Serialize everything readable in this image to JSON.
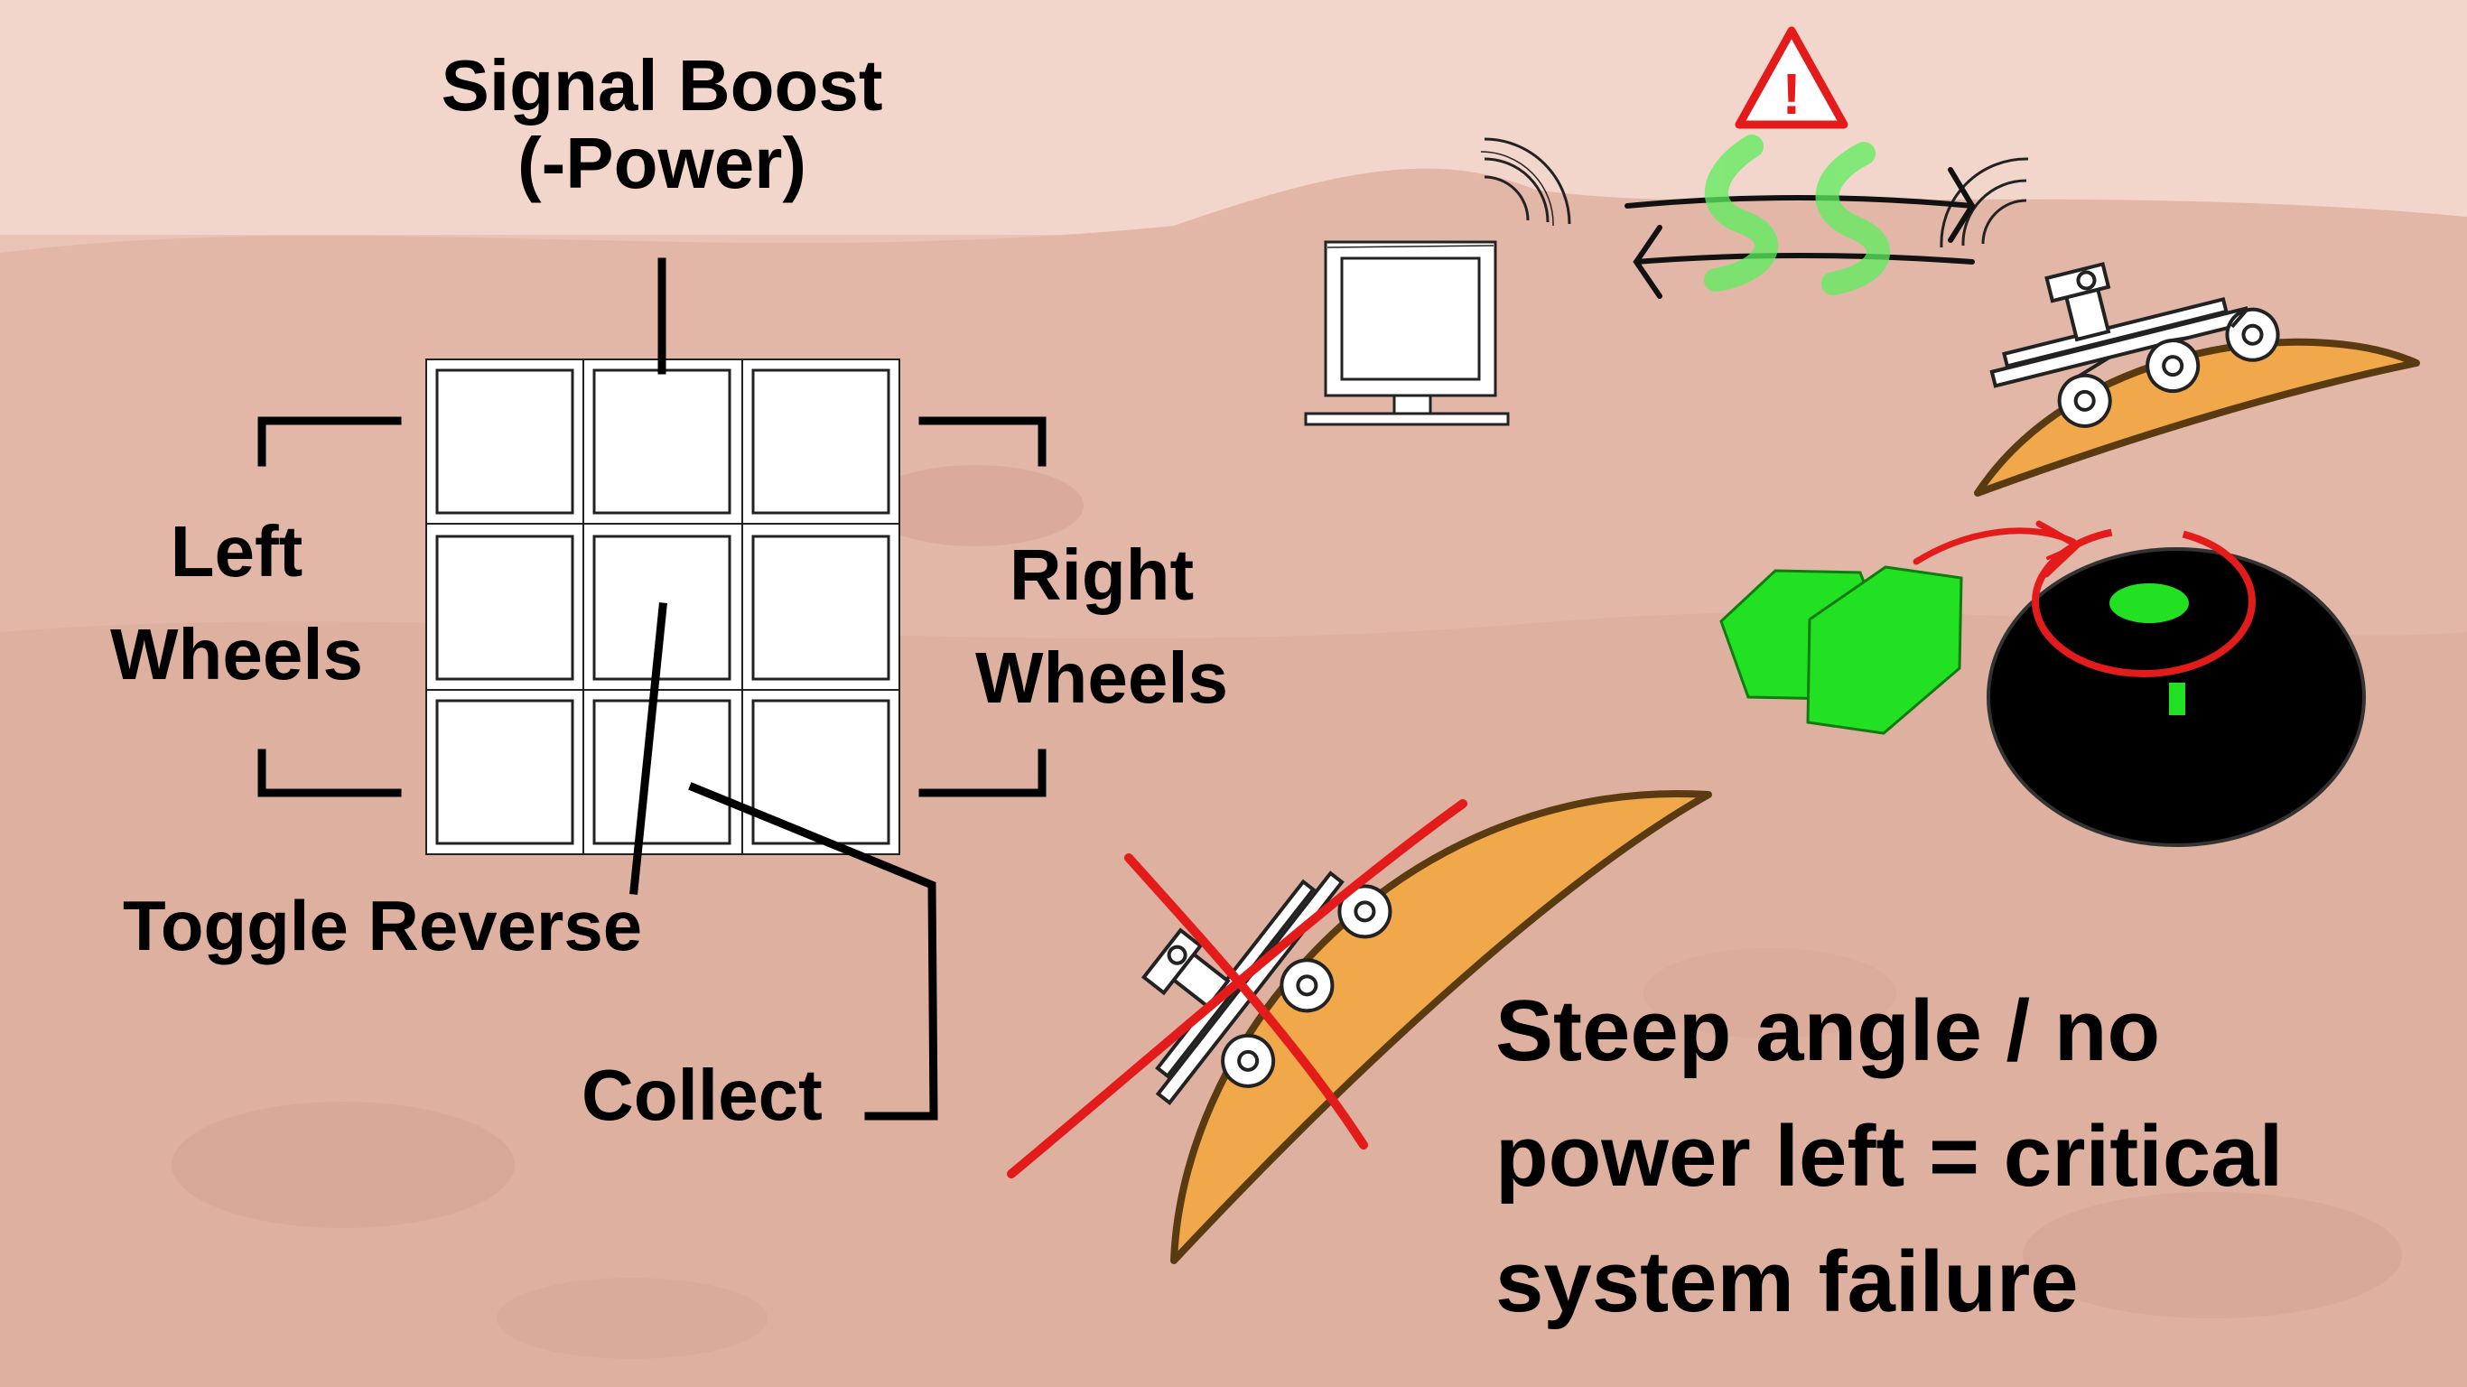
{
  "labels": {
    "signal_boost_line1": "Signal Boost",
    "signal_boost_line2": "(-Power)",
    "left_wheels_line1": "Left",
    "left_wheels_line2": "Wheels",
    "right_wheels_line1": "Right",
    "right_wheels_line2": "Wheels",
    "toggle_reverse": "Toggle Reverse",
    "collect": "Collect",
    "failure_line1": "Steep angle / no",
    "failure_line2": "power left = critical",
    "failure_line3": "system failure",
    "warning_glyph": "!"
  },
  "controls_grid": {
    "rows": 3,
    "cols": 3
  },
  "colors": {
    "background": "#e8c3b6",
    "hill_fill": "#f0a84a",
    "hill_edge": "#5a3a10",
    "signal_wave": "#5cef5c",
    "hexagon": "#22e022",
    "warning": "#e31b1b",
    "cross": "#e31b1b",
    "scanner": "#000000",
    "scanner_marker": "#22e022"
  },
  "icons": [
    "warning-icon",
    "computer-monitor-icon",
    "signal-wave-icon",
    "rover-icon",
    "hexagon-sample-icon",
    "scanner-icon",
    "arrow-icon",
    "cross-icon"
  ]
}
